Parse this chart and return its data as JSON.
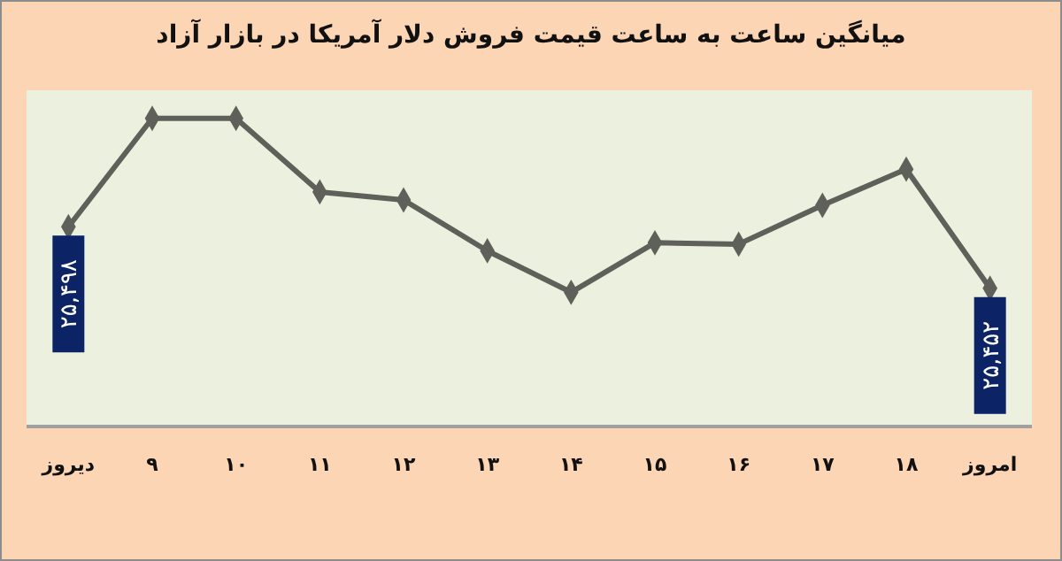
{
  "chart_data": {
    "type": "line",
    "title": "میانگین ساعت به ساعت قیمت فروش دلار آمریکا در بازار آزاد",
    "categories": [
      "دیروز",
      "۹",
      "۱۰",
      "۱۱",
      "۱۲",
      "۱۳",
      "۱۴",
      "۱۵",
      "۱۶",
      "۱۷",
      "۱۸",
      "امروز"
    ],
    "series": [
      {
        "color": "#5f605a",
        "values": [
          25498,
          25579,
          25579,
          25524,
          25518,
          25480,
          25449,
          25486,
          25485,
          25514,
          25541,
          25452
        ],
        "value_labels": [
          "۲۵,۴۹۸",
          null,
          null,
          null,
          null,
          null,
          null,
          null,
          null,
          null,
          null,
          "۲۵,۴۵۲"
        ]
      }
    ],
    "ylim": [
      25350,
      25600
    ],
    "tick_labels": "x",
    "marker": "diamond",
    "line_style": "solid"
  }
}
